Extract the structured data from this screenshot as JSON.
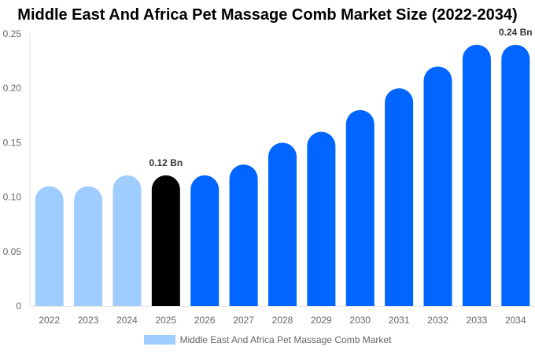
{
  "chart_data": {
    "type": "bar",
    "title": "Middle East And Africa Pet Massage Comb Market Size (2022-2034)",
    "categories": [
      "2022",
      "2023",
      "2024",
      "2025",
      "2026",
      "2027",
      "2028",
      "2029",
      "2030",
      "2031",
      "2032",
      "2033",
      "2034"
    ],
    "series": [
      {
        "name": "Middle East And Africa Pet Massage Comb Market",
        "values": [
          0.11,
          0.11,
          0.12,
          0.12,
          0.12,
          0.13,
          0.15,
          0.16,
          0.18,
          0.2,
          0.22,
          0.24,
          0.24
        ]
      }
    ],
    "data_labels": [
      {
        "category": "2025",
        "text": "0.12 Bn"
      },
      {
        "category": "2034",
        "text": "0.24 Bn"
      }
    ],
    "ylim": [
      0,
      0.25
    ],
    "yticks": [
      "0",
      "0.05",
      "0.10",
      "0.15",
      "0.20",
      "0.25"
    ],
    "grid": false,
    "legend_position": "bottom",
    "colors": {
      "historical": "#a0cdff",
      "current": "#000000",
      "forecast": "#0066ff"
    },
    "bar_color_groups": [
      "historical",
      "historical",
      "historical",
      "current",
      "forecast",
      "forecast",
      "forecast",
      "forecast",
      "forecast",
      "forecast",
      "forecast",
      "forecast",
      "forecast"
    ]
  }
}
